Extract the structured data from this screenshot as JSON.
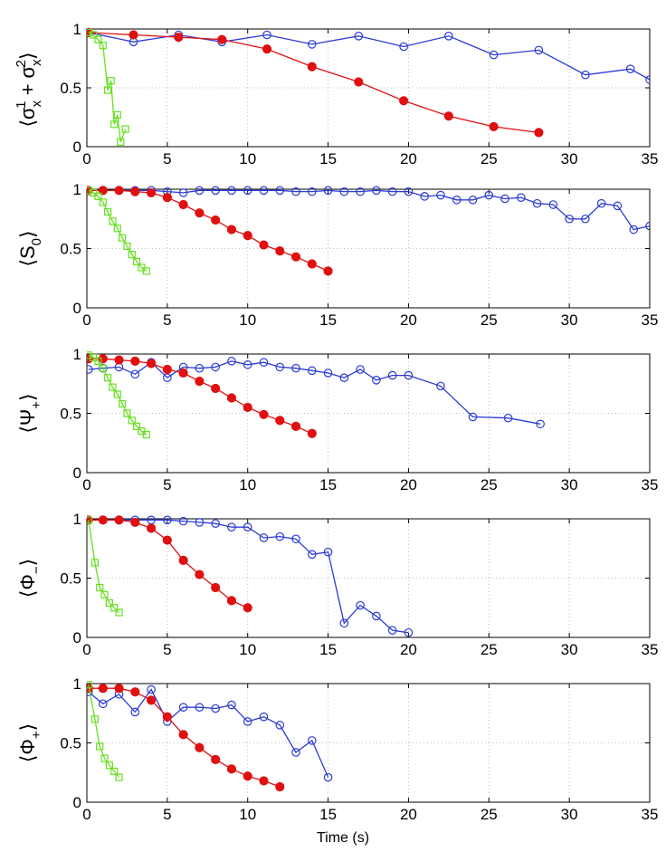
{
  "chart_data": [
    {
      "type": "line",
      "ylabel": "⟨σ_x^1 + σ_x^2⟩",
      "xlim": [
        0,
        35
      ],
      "ylim": [
        0,
        1
      ],
      "xticks": [
        0,
        5,
        10,
        15,
        20,
        25,
        30,
        35
      ],
      "yticks": [
        0,
        0.5,
        1
      ],
      "series": [
        {
          "name": "blue",
          "color": "#2b3bd6",
          "marker": "circle",
          "x": [
            0.1,
            2.9,
            5.7,
            8.4,
            11.2,
            14.0,
            16.9,
            19.7,
            22.5,
            25.3,
            28.1,
            31.0,
            33.8,
            35.0
          ],
          "y": [
            0.97,
            0.89,
            0.95,
            0.89,
            0.95,
            0.87,
            0.94,
            0.85,
            0.94,
            0.78,
            0.82,
            0.61,
            0.66,
            0.57
          ]
        },
        {
          "name": "red",
          "color": "#e01010",
          "marker": "filled-circle",
          "x": [
            0.1,
            2.9,
            5.7,
            8.4,
            11.2,
            14.0,
            16.9,
            19.7,
            22.5,
            25.3,
            28.1
          ],
          "y": [
            0.97,
            0.95,
            0.93,
            0.91,
            0.83,
            0.68,
            0.55,
            0.39,
            0.26,
            0.17,
            0.12
          ]
        },
        {
          "name": "green",
          "color": "#66e01e",
          "marker": "square",
          "x": [
            0.1,
            0.4,
            0.7,
            1.0,
            1.3,
            1.5,
            1.7,
            1.9,
            2.1,
            2.4
          ],
          "y": [
            0.97,
            0.95,
            0.91,
            0.86,
            0.48,
            0.56,
            0.19,
            0.27,
            0.04,
            0.15
          ]
        }
      ]
    },
    {
      "type": "line",
      "ylabel": "⟨S_0⟩",
      "xlim": [
        0,
        35
      ],
      "ylim": [
        0,
        1
      ],
      "xticks": [
        0,
        5,
        10,
        15,
        20,
        25,
        30,
        35
      ],
      "yticks": [
        0,
        0.5,
        1
      ],
      "series": [
        {
          "name": "blue",
          "color": "#2b3bd6",
          "marker": "circle",
          "x": [
            0.1,
            1.0,
            2.0,
            3.0,
            4.0,
            5.0,
            6.0,
            7.0,
            8.0,
            9.0,
            10.0,
            11.0,
            12.0,
            13.0,
            14.0,
            15.0,
            16.0,
            17.0,
            18.0,
            19.0,
            20.0,
            21.0,
            22.0,
            23.0,
            24.0,
            25.0,
            26.0,
            27.0,
            28.0,
            29.0,
            30.0,
            31.0,
            32.0,
            33.0,
            34.0,
            35.0
          ],
          "y": [
            0.99,
            0.99,
            0.99,
            0.99,
            0.99,
            0.98,
            0.97,
            0.99,
            0.99,
            0.99,
            0.99,
            0.99,
            0.99,
            0.98,
            0.98,
            0.99,
            0.98,
            0.98,
            0.99,
            0.98,
            0.98,
            0.94,
            0.95,
            0.91,
            0.91,
            0.95,
            0.92,
            0.93,
            0.88,
            0.87,
            0.75,
            0.75,
            0.88,
            0.86,
            0.66,
            0.69
          ]
        },
        {
          "name": "red",
          "color": "#e01010",
          "marker": "filled-circle",
          "x": [
            0.1,
            1.0,
            2.0,
            3.0,
            4.0,
            5.0,
            6.0,
            7.0,
            8.0,
            9.0,
            10.0,
            11.0,
            12.0,
            13.0,
            14.0,
            15.0
          ],
          "y": [
            0.99,
            0.99,
            0.99,
            0.98,
            0.97,
            0.93,
            0.87,
            0.8,
            0.74,
            0.66,
            0.61,
            0.53,
            0.48,
            0.43,
            0.37,
            0.31
          ]
        },
        {
          "name": "green",
          "color": "#66e01e",
          "marker": "square",
          "x": [
            0.1,
            0.4,
            0.7,
            1.0,
            1.3,
            1.6,
            1.9,
            2.2,
            2.5,
            2.8,
            3.1,
            3.4,
            3.7
          ],
          "y": [
            0.99,
            0.97,
            0.94,
            0.89,
            0.81,
            0.73,
            0.67,
            0.59,
            0.52,
            0.45,
            0.39,
            0.34,
            0.31
          ]
        }
      ]
    },
    {
      "type": "line",
      "ylabel": "⟨Ψ_+⟩",
      "xlim": [
        0,
        35
      ],
      "ylim": [
        0,
        1
      ],
      "xticks": [
        0,
        5,
        10,
        15,
        20,
        25,
        30,
        35
      ],
      "yticks": [
        0,
        0.5,
        1
      ],
      "series": [
        {
          "name": "blue",
          "color": "#2b3bd6",
          "marker": "circle",
          "x": [
            0.1,
            1.0,
            2.0,
            3.0,
            4.0,
            5.0,
            6.0,
            7.0,
            8.0,
            9.0,
            10.0,
            11.0,
            12.0,
            13.0,
            14.0,
            15.0,
            16.0,
            17.0,
            18.0,
            19.0,
            20.0,
            22.0,
            24.0,
            26.2,
            28.2
          ],
          "y": [
            0.87,
            0.88,
            0.89,
            0.83,
            0.93,
            0.8,
            0.89,
            0.88,
            0.89,
            0.94,
            0.91,
            0.93,
            0.89,
            0.88,
            0.86,
            0.84,
            0.8,
            0.87,
            0.78,
            0.82,
            0.82,
            0.73,
            0.47,
            0.46,
            0.41
          ]
        },
        {
          "name": "red",
          "color": "#e01010",
          "marker": "filled-circle",
          "x": [
            0.1,
            1.0,
            2.0,
            3.0,
            4.0,
            5.0,
            6.0,
            7.0,
            8.0,
            9.0,
            10.0,
            11.0,
            12.0,
            13.0,
            14.0
          ],
          "y": [
            0.96,
            0.96,
            0.95,
            0.94,
            0.92,
            0.87,
            0.84,
            0.77,
            0.71,
            0.63,
            0.55,
            0.49,
            0.44,
            0.39,
            0.33
          ]
        },
        {
          "name": "green",
          "color": "#66e01e",
          "marker": "square",
          "x": [
            0.1,
            0.4,
            0.7,
            1.0,
            1.3,
            1.6,
            1.9,
            2.2,
            2.5,
            2.8,
            3.1,
            3.4,
            3.7
          ],
          "y": [
            0.99,
            0.97,
            0.94,
            0.88,
            0.8,
            0.72,
            0.66,
            0.58,
            0.5,
            0.44,
            0.39,
            0.35,
            0.32
          ]
        }
      ]
    },
    {
      "type": "line",
      "ylabel": "⟨Φ_−⟩",
      "xlim": [
        0,
        35
      ],
      "ylim": [
        0,
        1
      ],
      "xticks": [
        0,
        5,
        10,
        15,
        20,
        25,
        30,
        35
      ],
      "yticks": [
        0,
        0.5,
        1
      ],
      "series": [
        {
          "name": "blue",
          "color": "#2b3bd6",
          "marker": "circle",
          "x": [
            0.1,
            1.0,
            2.0,
            3.0,
            4.0,
            5.0,
            6.0,
            7.0,
            8.0,
            9.0,
            10.0,
            11.0,
            12.0,
            13.0,
            14.0,
            15.0,
            16.0,
            17.0,
            18.0,
            19.0,
            20.0
          ],
          "y": [
            0.99,
            0.99,
            0.99,
            0.99,
            0.99,
            0.99,
            0.98,
            0.97,
            0.96,
            0.93,
            0.93,
            0.84,
            0.85,
            0.83,
            0.7,
            0.72,
            0.12,
            0.27,
            0.18,
            0.06,
            0.04
          ]
        },
        {
          "name": "red",
          "color": "#e01010",
          "marker": "filled-circle",
          "x": [
            0.1,
            1.0,
            2.0,
            3.0,
            4.0,
            5.0,
            6.0,
            7.0,
            8.0,
            9.0,
            10.0
          ],
          "y": [
            0.99,
            0.99,
            0.99,
            0.97,
            0.92,
            0.82,
            0.65,
            0.53,
            0.42,
            0.31,
            0.25
          ]
        },
        {
          "name": "green",
          "color": "#66e01e",
          "marker": "square",
          "x": [
            0.1,
            0.5,
            0.8,
            1.1,
            1.4,
            1.7,
            2.0
          ],
          "y": [
            0.99,
            0.63,
            0.42,
            0.36,
            0.29,
            0.25,
            0.21
          ]
        }
      ]
    },
    {
      "type": "line",
      "ylabel": "⟨Φ_+⟩",
      "xlabel": "Time (s)",
      "xlim": [
        0,
        35
      ],
      "ylim": [
        0,
        1
      ],
      "xticks": [
        0,
        5,
        10,
        15,
        20,
        25,
        30,
        35
      ],
      "yticks": [
        0,
        0.5,
        1
      ],
      "series": [
        {
          "name": "blue",
          "color": "#2b3bd6",
          "marker": "circle",
          "x": [
            0.1,
            1.0,
            2.0,
            3.0,
            4.0,
            5.0,
            6.0,
            7.0,
            8.0,
            9.0,
            10.0,
            11.0,
            12.0,
            13.0,
            14.0,
            15.0
          ],
          "y": [
            0.93,
            0.83,
            0.91,
            0.76,
            0.95,
            0.68,
            0.8,
            0.8,
            0.79,
            0.82,
            0.68,
            0.72,
            0.65,
            0.42,
            0.52,
            0.21
          ]
        },
        {
          "name": "red",
          "color": "#e01010",
          "marker": "filled-circle",
          "x": [
            0.1,
            1.0,
            2.0,
            3.0,
            4.0,
            5.0,
            6.0,
            7.0,
            8.0,
            9.0,
            10.0,
            11.0,
            12.0
          ],
          "y": [
            0.96,
            0.96,
            0.96,
            0.93,
            0.86,
            0.72,
            0.57,
            0.46,
            0.36,
            0.28,
            0.22,
            0.18,
            0.13
          ]
        },
        {
          "name": "green",
          "color": "#66e01e",
          "marker": "square",
          "x": [
            0.1,
            0.5,
            0.8,
            1.1,
            1.4,
            1.7,
            2.0
          ],
          "y": [
            0.99,
            0.7,
            0.47,
            0.37,
            0.31,
            0.26,
            0.21
          ]
        }
      ]
    }
  ]
}
